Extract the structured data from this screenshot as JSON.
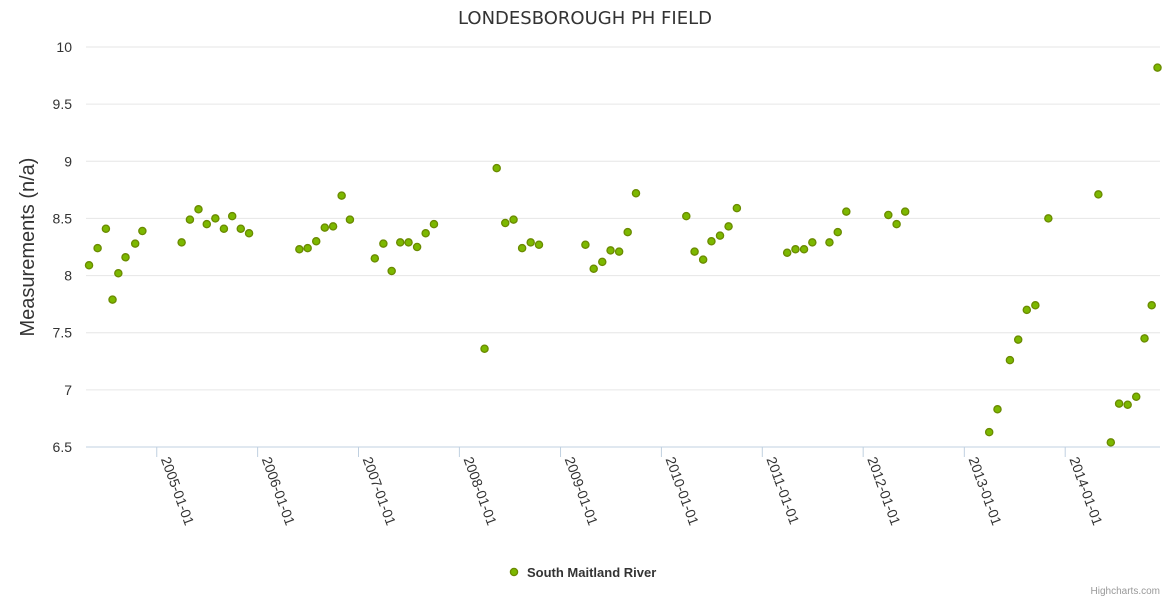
{
  "chart_data": {
    "type": "scatter",
    "title": "LONDESBOROUGH PH FIELD",
    "ylabel": "Measurements (n/a)",
    "xlabel": "",
    "ylim": [
      6.5,
      10
    ],
    "yticks": [
      6.5,
      7,
      7.5,
      8,
      8.5,
      9,
      9.5,
      10
    ],
    "xlim": [
      "2004-04-20",
      "2014-12-10"
    ],
    "xticks": [
      "2005-01-01",
      "2006-01-01",
      "2007-01-01",
      "2008-01-01",
      "2009-01-01",
      "2010-01-01",
      "2011-01-01",
      "2012-01-01",
      "2013-01-01",
      "2014-01-01"
    ],
    "grid": true,
    "legend_position": "bottom-center",
    "marker_color": "#7cb800",
    "marker_stroke": "#6a8a00",
    "series": [
      {
        "name": "South Maitland River",
        "points": [
          {
            "x": "2004-05-01",
            "y": 8.09
          },
          {
            "x": "2004-06-01",
            "y": 8.24
          },
          {
            "x": "2004-07-01",
            "y": 8.41
          },
          {
            "x": "2004-07-25",
            "y": 7.79
          },
          {
            "x": "2004-08-15",
            "y": 8.02
          },
          {
            "x": "2004-09-10",
            "y": 8.16
          },
          {
            "x": "2004-10-15",
            "y": 8.28
          },
          {
            "x": "2004-11-10",
            "y": 8.39
          },
          {
            "x": "2005-04-01",
            "y": 8.29
          },
          {
            "x": "2005-05-01",
            "y": 8.49
          },
          {
            "x": "2005-06-01",
            "y": 8.58
          },
          {
            "x": "2005-07-01",
            "y": 8.45
          },
          {
            "x": "2005-08-01",
            "y": 8.5
          },
          {
            "x": "2005-09-01",
            "y": 8.41
          },
          {
            "x": "2005-10-01",
            "y": 8.52
          },
          {
            "x": "2005-11-01",
            "y": 8.41
          },
          {
            "x": "2005-12-01",
            "y": 8.37
          },
          {
            "x": "2006-06-01",
            "y": 8.23
          },
          {
            "x": "2006-07-01",
            "y": 8.24
          },
          {
            "x": "2006-08-01",
            "y": 8.3
          },
          {
            "x": "2006-09-01",
            "y": 8.42
          },
          {
            "x": "2006-10-01",
            "y": 8.43
          },
          {
            "x": "2006-11-01",
            "y": 8.7
          },
          {
            "x": "2006-12-01",
            "y": 8.49
          },
          {
            "x": "2007-03-01",
            "y": 8.15
          },
          {
            "x": "2007-04-01",
            "y": 8.28
          },
          {
            "x": "2007-05-01",
            "y": 8.04
          },
          {
            "x": "2007-06-01",
            "y": 8.29
          },
          {
            "x": "2007-07-01",
            "y": 8.29
          },
          {
            "x": "2007-08-01",
            "y": 8.25
          },
          {
            "x": "2007-09-01",
            "y": 8.37
          },
          {
            "x": "2007-10-01",
            "y": 8.45
          },
          {
            "x": "2008-04-01",
            "y": 7.36
          },
          {
            "x": "2008-05-15",
            "y": 8.94
          },
          {
            "x": "2008-06-15",
            "y": 8.46
          },
          {
            "x": "2008-07-15",
            "y": 8.49
          },
          {
            "x": "2008-08-15",
            "y": 8.24
          },
          {
            "x": "2008-09-15",
            "y": 8.29
          },
          {
            "x": "2008-10-15",
            "y": 8.27
          },
          {
            "x": "2009-04-01",
            "y": 8.27
          },
          {
            "x": "2009-05-01",
            "y": 8.06
          },
          {
            "x": "2009-06-01",
            "y": 8.12
          },
          {
            "x": "2009-07-01",
            "y": 8.22
          },
          {
            "x": "2009-08-01",
            "y": 8.21
          },
          {
            "x": "2009-09-01",
            "y": 8.38
          },
          {
            "x": "2009-10-01",
            "y": 8.72
          },
          {
            "x": "2010-04-01",
            "y": 8.52
          },
          {
            "x": "2010-05-01",
            "y": 8.21
          },
          {
            "x": "2010-06-01",
            "y": 8.14
          },
          {
            "x": "2010-07-01",
            "y": 8.3
          },
          {
            "x": "2010-08-01",
            "y": 8.35
          },
          {
            "x": "2010-09-01",
            "y": 8.43
          },
          {
            "x": "2010-10-01",
            "y": 8.59
          },
          {
            "x": "2011-04-01",
            "y": 8.2
          },
          {
            "x": "2011-05-01",
            "y": 8.23
          },
          {
            "x": "2011-06-01",
            "y": 8.23
          },
          {
            "x": "2011-07-01",
            "y": 8.29
          },
          {
            "x": "2011-09-01",
            "y": 8.29
          },
          {
            "x": "2011-10-01",
            "y": 8.38
          },
          {
            "x": "2011-11-01",
            "y": 8.56
          },
          {
            "x": "2012-04-01",
            "y": 8.53
          },
          {
            "x": "2012-05-01",
            "y": 8.45
          },
          {
            "x": "2012-06-01",
            "y": 8.56
          },
          {
            "x": "2013-04-01",
            "y": 6.63
          },
          {
            "x": "2013-05-01",
            "y": 6.83
          },
          {
            "x": "2013-06-15",
            "y": 7.26
          },
          {
            "x": "2013-07-15",
            "y": 7.44
          },
          {
            "x": "2013-08-15",
            "y": 7.7
          },
          {
            "x": "2013-09-15",
            "y": 7.74
          },
          {
            "x": "2013-11-01",
            "y": 8.5
          },
          {
            "x": "2014-05-01",
            "y": 8.71
          },
          {
            "x": "2014-06-15",
            "y": 6.54
          },
          {
            "x": "2014-07-15",
            "y": 6.88
          },
          {
            "x": "2014-08-15",
            "y": 6.87
          },
          {
            "x": "2014-09-15",
            "y": 6.94
          },
          {
            "x": "2014-10-15",
            "y": 7.45
          },
          {
            "x": "2014-11-10",
            "y": 7.74
          },
          {
            "x": "2014-12-01",
            "y": 9.82
          }
        ]
      }
    ]
  },
  "credits": "Highcharts.com"
}
